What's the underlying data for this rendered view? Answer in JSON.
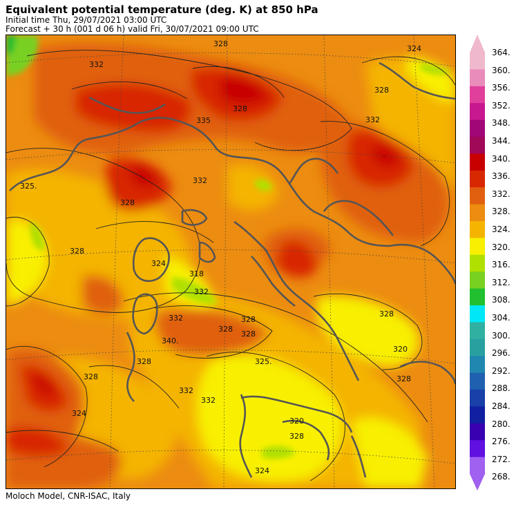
{
  "header": {
    "title": "Equivalent potential temperature (deg. K) at 850 hPa",
    "initial_time": "Initial time  Thu, 29/07/2021  03:00 UTC",
    "forecast": "Forecast  +  30 h  (001 d 06 h)  valid Fri, 30/07/2021 09:00 UTC"
  },
  "footer": {
    "credit": "Moloch Model, CNR-ISAC, Italy"
  },
  "map": {
    "contour_labels": [
      "328",
      "332",
      "324",
      "325.",
      "328",
      "332",
      "328",
      "324",
      "318",
      "332",
      "332",
      "340.",
      "328",
      "328",
      "328",
      "325.",
      "328",
      "328",
      "332",
      "332",
      "328",
      "320",
      "328",
      "320",
      "328",
      "324",
      "332",
      "335",
      "328",
      "328",
      "324"
    ]
  },
  "colorbar": {
    "labels": [
      "364.",
      "360.",
      "356.",
      "352.",
      "348.",
      "344.",
      "340.",
      "336.",
      "332.",
      "328.",
      "324.",
      "320.",
      "316.",
      "312.",
      "308.",
      "304.",
      "300.",
      "296.",
      "292.",
      "288.",
      "284.",
      "280.",
      "276.",
      "272.",
      "268."
    ],
    "colors": [
      "#f0b8cc",
      "#e98cbb",
      "#e0409c",
      "#c81890",
      "#a00878",
      "#a00858",
      "#c80000",
      "#d82800",
      "#e06010",
      "#ec8c10",
      "#f4b400",
      "#f8f000",
      "#b0e000",
      "#78d020",
      "#20c030",
      "#00e8f8",
      "#30b0a0",
      "#28a0a0",
      "#2088b0",
      "#2060b0",
      "#1840a8",
      "#1020a0",
      "#3800b0",
      "#6010e0",
      "#a060f0"
    ]
  }
}
